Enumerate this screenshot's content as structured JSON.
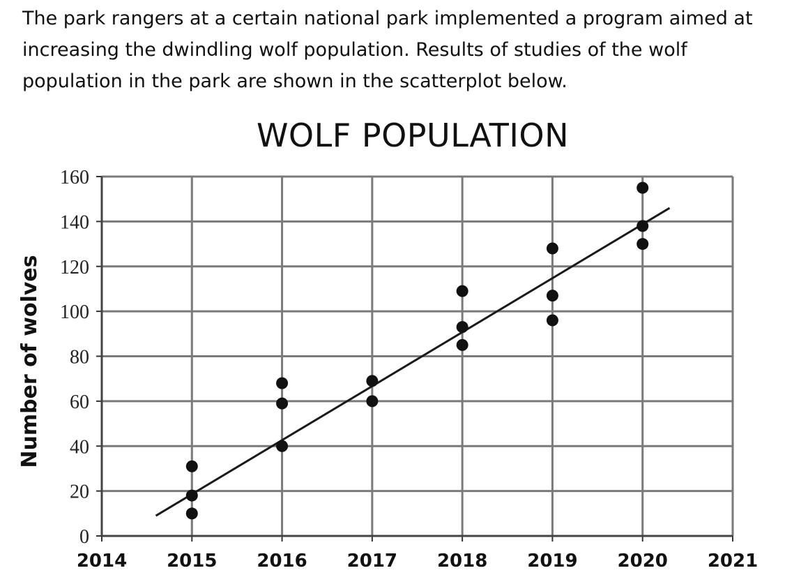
{
  "prompt": {
    "text": "The park rangers at a certain national park implemented a program aimed at increasing the dwindling wolf population. Results of studies of the wolf population in the park are shown in the scatterplot below."
  },
  "chart_data": {
    "type": "scatter",
    "title": "WOLF POPULATION",
    "xlabel": "",
    "ylabel": "Number of wolves",
    "xlim": [
      2014,
      2021
    ],
    "ylim": [
      0,
      160
    ],
    "xticks": [
      "2014",
      "2015",
      "2016",
      "2017",
      "2018",
      "2019",
      "2020",
      "2021"
    ],
    "yticks": [
      "0",
      "20",
      "40",
      "60",
      "80",
      "100",
      "120",
      "140",
      "160"
    ],
    "grid": true,
    "points": [
      {
        "x": 2015,
        "y": 10
      },
      {
        "x": 2015,
        "y": 18
      },
      {
        "x": 2015,
        "y": 31
      },
      {
        "x": 2016,
        "y": 40
      },
      {
        "x": 2016,
        "y": 59
      },
      {
        "x": 2016,
        "y": 68
      },
      {
        "x": 2017,
        "y": 60
      },
      {
        "x": 2017,
        "y": 69
      },
      {
        "x": 2018,
        "y": 85
      },
      {
        "x": 2018,
        "y": 93
      },
      {
        "x": 2018,
        "y": 109
      },
      {
        "x": 2019,
        "y": 96
      },
      {
        "x": 2019,
        "y": 107
      },
      {
        "x": 2019,
        "y": 128
      },
      {
        "x": 2020,
        "y": 130
      },
      {
        "x": 2020,
        "y": 138
      },
      {
        "x": 2020,
        "y": 155
      }
    ],
    "trend_line": {
      "x": [
        2014.6,
        2020.3
      ],
      "y": [
        9,
        146
      ]
    },
    "colors": {
      "points": "#111111",
      "grid": "#7a7a7a",
      "line": "#1a1a1a"
    }
  }
}
